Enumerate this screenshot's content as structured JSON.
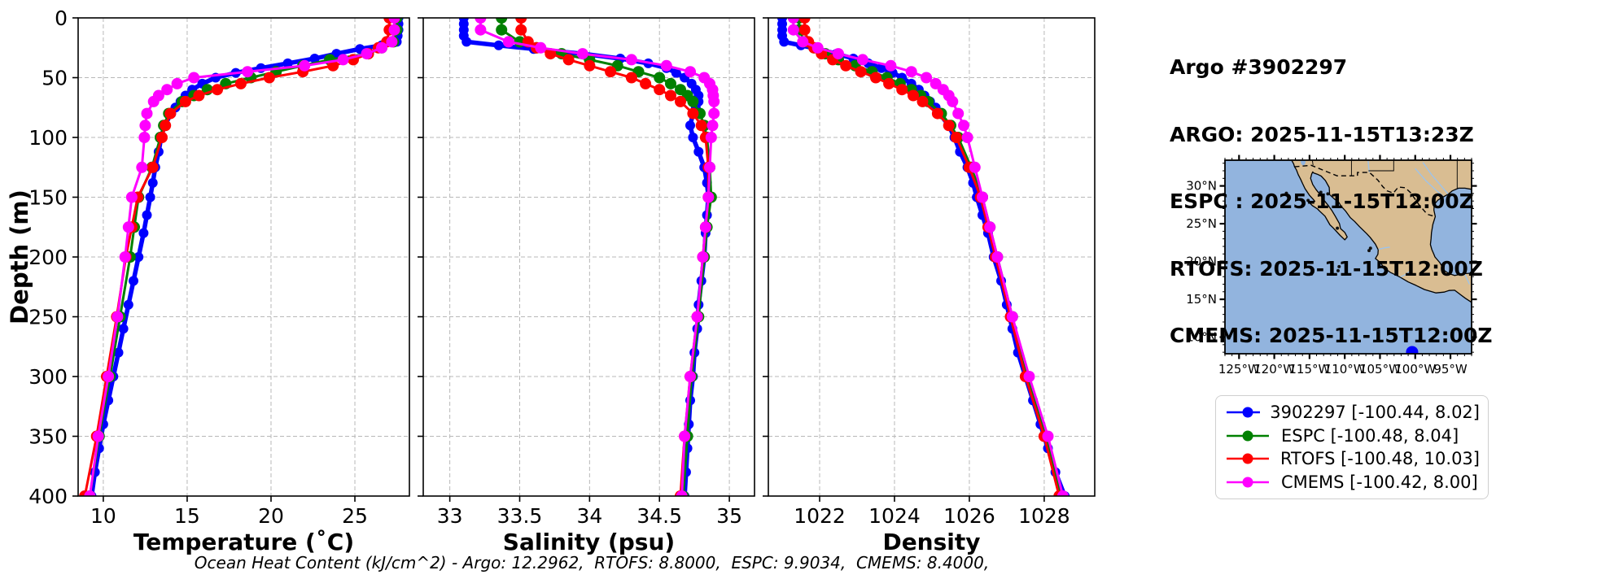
{
  "header": {
    "lines": [
      "Argo #3902297",
      "ARGO: 2025-11-15T13:23Z",
      "ESPC : 2025-11-15T12:00Z",
      "RTOFS: 2025-11-15T12:00Z",
      "CMEMS: 2025-11-15T12:00Z"
    ]
  },
  "footer": {
    "text": "Ocean Heat Content (kJ/cm^2) - Argo: 12.2962,  RTOFS: 8.8000,  ESPC: 9.9034,  CMEMS: 8.4000,"
  },
  "depth_axis": {
    "label": "Depth (m)",
    "ticks": [
      0,
      50,
      100,
      150,
      200,
      250,
      300,
      350,
      400
    ],
    "range": [
      0,
      400
    ]
  },
  "profile_depths": {
    "argo": [
      0,
      5,
      10,
      15,
      20,
      23,
      26,
      30,
      34,
      38,
      42,
      46,
      50,
      55,
      60,
      65,
      70,
      75,
      80,
      90,
      100,
      112,
      125,
      138,
      150,
      165,
      180,
      200,
      220,
      240,
      260,
      280,
      300,
      320,
      340,
      360,
      380,
      400
    ],
    "model": [
      0,
      10,
      20,
      25,
      30,
      35,
      40,
      45,
      50,
      55,
      60,
      65,
      70,
      80,
      90,
      100,
      125,
      150,
      175,
      200,
      250,
      300,
      350,
      400
    ]
  },
  "chart_data": [
    {
      "type": "line",
      "xlabel": "Temperature (˚C)",
      "ylabel": "Depth (m)",
      "xticks": [
        10,
        15,
        20,
        25
      ],
      "xlim": [
        8.5,
        28.25
      ],
      "ylim": [
        400,
        0
      ],
      "grid": true,
      "series": [
        {
          "name": "3902297",
          "color": "#0000ff",
          "depths": "argo",
          "lw": 5.5,
          "mr": 6,
          "values": [
            27.6,
            27.6,
            27.6,
            27.55,
            27.5,
            26.6,
            25.3,
            23.9,
            22.6,
            21.0,
            19.4,
            17.9,
            16.7,
            15.9,
            15.3,
            14.9,
            14.6,
            14.3,
            14.05,
            13.65,
            13.45,
            13.3,
            13.1,
            12.95,
            12.8,
            12.6,
            12.4,
            12.1,
            11.8,
            11.5,
            11.2,
            10.9,
            10.6,
            10.3,
            10.0,
            9.75,
            9.5,
            9.3
          ]
        },
        {
          "name": "ESPC",
          "color": "#008000",
          "depths": "model",
          "lw": 3,
          "mr": 7,
          "values": [
            27.5,
            27.5,
            27.3,
            26.6,
            25.8,
            23.5,
            21.9,
            20.3,
            18.8,
            17.3,
            16.2,
            15.4,
            14.7,
            13.9,
            13.6,
            13.4,
            12.9,
            12.1,
            11.85,
            11.6,
            11.0,
            10.4,
            9.75,
            9.2
          ]
        },
        {
          "name": "RTOFS",
          "color": "#ff0000",
          "depths": "model",
          "lw": 3,
          "mr": 7,
          "values": [
            27.05,
            27.05,
            26.9,
            26.4,
            25.8,
            24.9,
            23.7,
            21.9,
            19.9,
            18.2,
            16.8,
            15.7,
            14.9,
            14.0,
            13.7,
            13.5,
            12.95,
            12.05,
            11.7,
            11.35,
            10.8,
            10.2,
            9.6,
            8.9
          ]
        },
        {
          "name": "CMEMS",
          "color": "#ff00ff",
          "depths": "model",
          "lw": 3,
          "mr": 7,
          "values": [
            27.35,
            27.35,
            27.2,
            26.6,
            25.7,
            24.3,
            22.0,
            18.6,
            15.4,
            14.4,
            13.8,
            13.3,
            13.0,
            12.6,
            12.5,
            12.45,
            12.3,
            11.7,
            11.5,
            11.3,
            10.85,
            10.3,
            9.7,
            9.2
          ]
        }
      ]
    },
    {
      "type": "line",
      "xlabel": "Salinity (psu)",
      "ylabel": "Depth (m)",
      "xticks": [
        33.0,
        33.5,
        34.0,
        34.5,
        35.0
      ],
      "xlim": [
        32.81,
        35.18
      ],
      "ylim": [
        400,
        0
      ],
      "grid": true,
      "series": [
        {
          "name": "3902297",
          "color": "#0000ff",
          "depths": "argo",
          "lw": 5.5,
          "mr": 6,
          "values": [
            33.1,
            33.1,
            33.1,
            33.1,
            33.12,
            33.35,
            33.6,
            33.95,
            34.22,
            34.42,
            34.55,
            34.62,
            34.68,
            34.73,
            34.76,
            34.78,
            34.78,
            34.76,
            34.74,
            34.72,
            34.74,
            34.78,
            34.82,
            34.84,
            34.85,
            34.84,
            34.83,
            34.82,
            34.8,
            34.78,
            34.77,
            34.75,
            34.74,
            34.72,
            34.71,
            34.7,
            34.69,
            34.68
          ]
        },
        {
          "name": "ESPC",
          "color": "#008000",
          "depths": "model",
          "lw": 3,
          "mr": 7,
          "values": [
            33.37,
            33.37,
            33.5,
            33.62,
            33.8,
            34.0,
            34.2,
            34.35,
            34.5,
            34.58,
            34.65,
            34.7,
            34.74,
            34.79,
            34.82,
            34.84,
            34.86,
            34.87,
            34.84,
            34.82,
            34.78,
            34.73,
            34.7,
            34.67
          ]
        },
        {
          "name": "RTOFS",
          "color": "#ff0000",
          "depths": "model",
          "lw": 3,
          "mr": 7,
          "values": [
            33.51,
            33.51,
            33.56,
            33.62,
            33.72,
            33.85,
            34.0,
            34.15,
            34.3,
            34.4,
            34.5,
            34.58,
            34.65,
            34.74,
            34.8,
            34.83,
            34.85,
            34.85,
            34.83,
            34.81,
            34.77,
            34.72,
            34.68,
            34.65
          ]
        },
        {
          "name": "CMEMS",
          "color": "#ff00ff",
          "depths": "model",
          "lw": 3,
          "mr": 7,
          "values": [
            33.22,
            33.22,
            33.42,
            33.65,
            33.95,
            34.3,
            34.55,
            34.72,
            34.82,
            34.86,
            34.88,
            34.885,
            34.89,
            34.89,
            34.88,
            34.87,
            34.86,
            34.85,
            34.83,
            34.81,
            34.77,
            34.72,
            34.68,
            34.66
          ]
        }
      ]
    },
    {
      "type": "line",
      "xlabel": "Density",
      "ylabel": "Depth (m)",
      "xticks": [
        1022,
        1024,
        1026,
        1028
      ],
      "xlim": [
        1020.63,
        1029.35
      ],
      "ylim": [
        400,
        0
      ],
      "grid": true,
      "series": [
        {
          "name": "3902297",
          "color": "#0000ff",
          "depths": "argo",
          "lw": 5.5,
          "mr": 6,
          "values": [
            1021.0,
            1021.0,
            1021.0,
            1021.0,
            1021.05,
            1021.5,
            1021.95,
            1022.45,
            1022.9,
            1023.3,
            1023.65,
            1023.95,
            1024.2,
            1024.45,
            1024.65,
            1024.8,
            1024.95,
            1025.1,
            1025.2,
            1025.45,
            1025.6,
            1025.75,
            1025.95,
            1026.1,
            1026.2,
            1026.35,
            1026.5,
            1026.65,
            1026.85,
            1027.0,
            1027.15,
            1027.3,
            1027.5,
            1027.7,
            1027.9,
            1028.1,
            1028.3,
            1028.55
          ]
        },
        {
          "name": "ESPC",
          "color": "#008000",
          "depths": "model",
          "lw": 3,
          "mr": 7,
          "values": [
            1021.45,
            1021.45,
            1021.6,
            1021.85,
            1022.15,
            1022.5,
            1022.95,
            1023.4,
            1023.8,
            1024.15,
            1024.45,
            1024.7,
            1024.9,
            1025.25,
            1025.5,
            1025.7,
            1026.05,
            1026.35,
            1026.55,
            1026.75,
            1027.15,
            1027.55,
            1028.05,
            1028.45
          ]
        },
        {
          "name": "RTOFS",
          "color": "#ff0000",
          "depths": "model",
          "lw": 3,
          "mr": 7,
          "values": [
            1021.6,
            1021.6,
            1021.7,
            1021.85,
            1022.05,
            1022.35,
            1022.7,
            1023.1,
            1023.5,
            1023.85,
            1024.2,
            1024.5,
            1024.75,
            1025.15,
            1025.45,
            1025.65,
            1026.0,
            1026.3,
            1026.5,
            1026.7,
            1027.1,
            1027.5,
            1028.0,
            1028.4
          ]
        },
        {
          "name": "CMEMS",
          "color": "#ff00ff",
          "depths": "model",
          "lw": 3,
          "mr": 7,
          "values": [
            1021.3,
            1021.3,
            1021.55,
            1021.95,
            1022.5,
            1023.15,
            1023.9,
            1024.45,
            1024.85,
            1025.1,
            1025.3,
            1025.45,
            1025.55,
            1025.7,
            1025.85,
            1025.95,
            1026.15,
            1026.35,
            1026.55,
            1026.75,
            1027.15,
            1027.6,
            1028.1,
            1028.5
          ]
        }
      ]
    }
  ],
  "map": {
    "extent": {
      "lon": [
        -127.0,
        -92.0
      ],
      "lat": [
        7.8,
        33.4
      ]
    },
    "lon_ticks": [
      -125,
      -120,
      -115,
      -110,
      -105,
      -100,
      -95
    ],
    "lon_tick_labels": [
      "125°W",
      "120°W",
      "115°W",
      "110°W",
      "105°W",
      "100°W",
      "95°W"
    ],
    "lat_ticks": [
      30,
      25,
      20,
      15,
      10
    ],
    "lat_tick_labels": [
      "30°N",
      "25°N",
      "20°N",
      "15°N",
      "10°N"
    ],
    "ocean_color": "#92b4de",
    "land_color": "#d9bd92",
    "river_color": "#9fc3e8",
    "float_marker": {
      "lon": -100.44,
      "lat": 8.02,
      "color": "#0000ff"
    },
    "land_polygon": [
      [
        -117.6,
        33.5
      ],
      [
        -117.25,
        32.9
      ],
      [
        -117.12,
        32.53
      ],
      [
        -116.85,
        32.1
      ],
      [
        -116.6,
        31.5
      ],
      [
        -116.25,
        30.85
      ],
      [
        -116.0,
        30.35
      ],
      [
        -115.65,
        29.65
      ],
      [
        -115.0,
        28.75
      ],
      [
        -114.45,
        28.2
      ],
      [
        -114.25,
        27.95
      ],
      [
        -115.05,
        27.82
      ],
      [
        -114.6,
        27.4
      ],
      [
        -113.85,
        26.95
      ],
      [
        -113.6,
        26.7
      ],
      [
        -112.8,
        26.0
      ],
      [
        -112.1,
        24.85
      ],
      [
        -111.65,
        24.45
      ],
      [
        -110.65,
        23.45
      ],
      [
        -110.0,
        22.87
      ],
      [
        -109.65,
        23.25
      ],
      [
        -110.0,
        23.85
      ],
      [
        -110.35,
        24.15
      ],
      [
        -110.6,
        24.35
      ],
      [
        -110.75,
        25.0
      ],
      [
        -111.35,
        26.0
      ],
      [
        -111.8,
        26.7
      ],
      [
        -112.3,
        27.35
      ],
      [
        -112.85,
        28.0
      ],
      [
        -113.5,
        28.85
      ],
      [
        -114.1,
        29.55
      ],
      [
        -114.55,
        30.2
      ],
      [
        -114.85,
        31.0
      ],
      [
        -114.7,
        31.55
      ],
      [
        -114.55,
        31.85
      ],
      [
        -114.4,
        31.7
      ],
      [
        -113.9,
        31.55
      ],
      [
        -113.35,
        31.3
      ],
      [
        -112.75,
        30.7
      ],
      [
        -112.2,
        29.8
      ],
      [
        -112.15,
        28.85
      ],
      [
        -111.4,
        28.2
      ],
      [
        -110.9,
        27.9
      ],
      [
        -110.5,
        27.3
      ],
      [
        -109.9,
        26.7
      ],
      [
        -109.2,
        25.8
      ],
      [
        -108.6,
        25.3
      ],
      [
        -107.9,
        24.6
      ],
      [
        -106.9,
        23.7
      ],
      [
        -106.4,
        23.2
      ],
      [
        -105.65,
        22.3
      ],
      [
        -105.25,
        21.55
      ],
      [
        -105.3,
        20.95
      ],
      [
        -105.65,
        20.4
      ],
      [
        -105.0,
        19.9
      ],
      [
        -104.35,
        19.1
      ],
      [
        -103.5,
        18.55
      ],
      [
        -102.2,
        17.95
      ],
      [
        -101.0,
        17.3
      ],
      [
        -99.9,
        16.85
      ],
      [
        -98.7,
        16.3
      ],
      [
        -97.05,
        15.85
      ],
      [
        -95.9,
        15.95
      ],
      [
        -95.2,
        16.17
      ],
      [
        -94.4,
        16.2
      ],
      [
        -93.55,
        15.6
      ],
      [
        -92.9,
        15.15
      ],
      [
        -92.0,
        14.6
      ],
      [
        -92.0,
        18.45
      ],
      [
        -93.1,
        18.4
      ],
      [
        -94.4,
        18.15
      ],
      [
        -95.2,
        18.4
      ],
      [
        -95.8,
        18.75
      ],
      [
        -96.1,
        19.2
      ],
      [
        -96.5,
        19.85
      ],
      [
        -97.2,
        20.6
      ],
      [
        -97.35,
        20.95
      ],
      [
        -97.65,
        21.6
      ],
      [
        -97.85,
        22.25
      ],
      [
        -97.75,
        23.0
      ],
      [
        -97.7,
        23.8
      ],
      [
        -97.5,
        24.9
      ],
      [
        -97.15,
        25.95
      ],
      [
        -97.35,
        26.8
      ],
      [
        -97.3,
        27.55
      ],
      [
        -96.8,
        28.1
      ],
      [
        -96.4,
        28.35
      ],
      [
        -95.3,
        28.9
      ],
      [
        -94.75,
        29.35
      ],
      [
        -93.85,
        29.7
      ],
      [
        -92.95,
        29.7
      ],
      [
        -92.0,
        29.55
      ],
      [
        -92.0,
        33.5
      ]
    ],
    "islands": [
      [
        -118.28,
        29.03
      ],
      [
        -115.2,
        28.08
      ],
      [
        -113.4,
        29.15
      ],
      [
        -112.4,
        28.95
      ],
      [
        -106.55,
        21.45
      ],
      [
        -106.35,
        21.75
      ],
      [
        -110.95,
        18.78
      ],
      [
        -110.8,
        19.32
      ],
      [
        -114.72,
        18.36
      ],
      [
        -111.05,
        24.4
      ]
    ],
    "islet_gray": [
      -109.2,
      10.3
    ],
    "lake": {
      "lon": -115.9,
      "lat": 33.25
    },
    "border_us_mexico": [
      [
        -117.12,
        32.53
      ],
      [
        -114.75,
        32.72
      ],
      [
        -111.1,
        31.33
      ],
      [
        -108.2,
        31.33
      ],
      [
        -108.2,
        31.78
      ],
      [
        -106.5,
        31.79
      ],
      [
        -105.3,
        30.75
      ],
      [
        -104.6,
        29.9
      ],
      [
        -104.0,
        29.35
      ],
      [
        -103.1,
        29.05
      ],
      [
        -102.4,
        29.85
      ],
      [
        -101.4,
        29.75
      ],
      [
        -100.65,
        29.1
      ],
      [
        -99.5,
        27.55
      ],
      [
        -98.3,
        26.25
      ],
      [
        -97.15,
        25.95
      ]
    ],
    "state_lines": [
      [
        [
          -114.6,
          33.5
        ],
        [
          -114.5,
          32.75
        ]
      ],
      [
        [
          -109.05,
          33.5
        ],
        [
          -109.05,
          31.33
        ]
      ],
      [
        [
          -103.06,
          33.5
        ],
        [
          -103.06,
          32.0
        ],
        [
          -106.62,
          32.0
        ]
      ],
      [
        [
          -94.05,
          33.5
        ],
        [
          -94.05,
          29.7
        ]
      ]
    ],
    "rivers": [
      [
        [
          -106.7,
          33.5
        ],
        [
          -106.6,
          32.4
        ],
        [
          -106.5,
          31.79
        ]
      ],
      [
        [
          -98.9,
          33.1
        ],
        [
          -97.7,
          31.5
        ],
        [
          -96.4,
          30.1
        ],
        [
          -95.35,
          28.95
        ]
      ],
      [
        [
          -100.0,
          32.3
        ],
        [
          -98.5,
          30.7
        ],
        [
          -97.0,
          29.4
        ],
        [
          -96.05,
          28.65
        ]
      ],
      [
        [
          -103.6,
          21.9
        ],
        [
          -104.4,
          21.8
        ],
        [
          -105.22,
          21.6
        ]
      ],
      [
        [
          -100.6,
          18.8
        ],
        [
          -101.5,
          18.2
        ],
        [
          -102.1,
          17.97
        ]
      ],
      [
        [
          -92.3,
          17.0
        ],
        [
          -92.75,
          17.9
        ],
        [
          -93.0,
          18.42
        ]
      ]
    ]
  },
  "legend": {
    "entries": [
      {
        "label": "3902297 [-100.44, 8.02]",
        "color": "#0000ff"
      },
      {
        "label": "ESPC [-100.48, 8.04]",
        "color": "#008000"
      },
      {
        "label": "RTOFS [-100.48, 10.03]",
        "color": "#ff0000"
      },
      {
        "label": "CMEMS [-100.42, 8.00]",
        "color": "#ff00ff"
      }
    ]
  }
}
